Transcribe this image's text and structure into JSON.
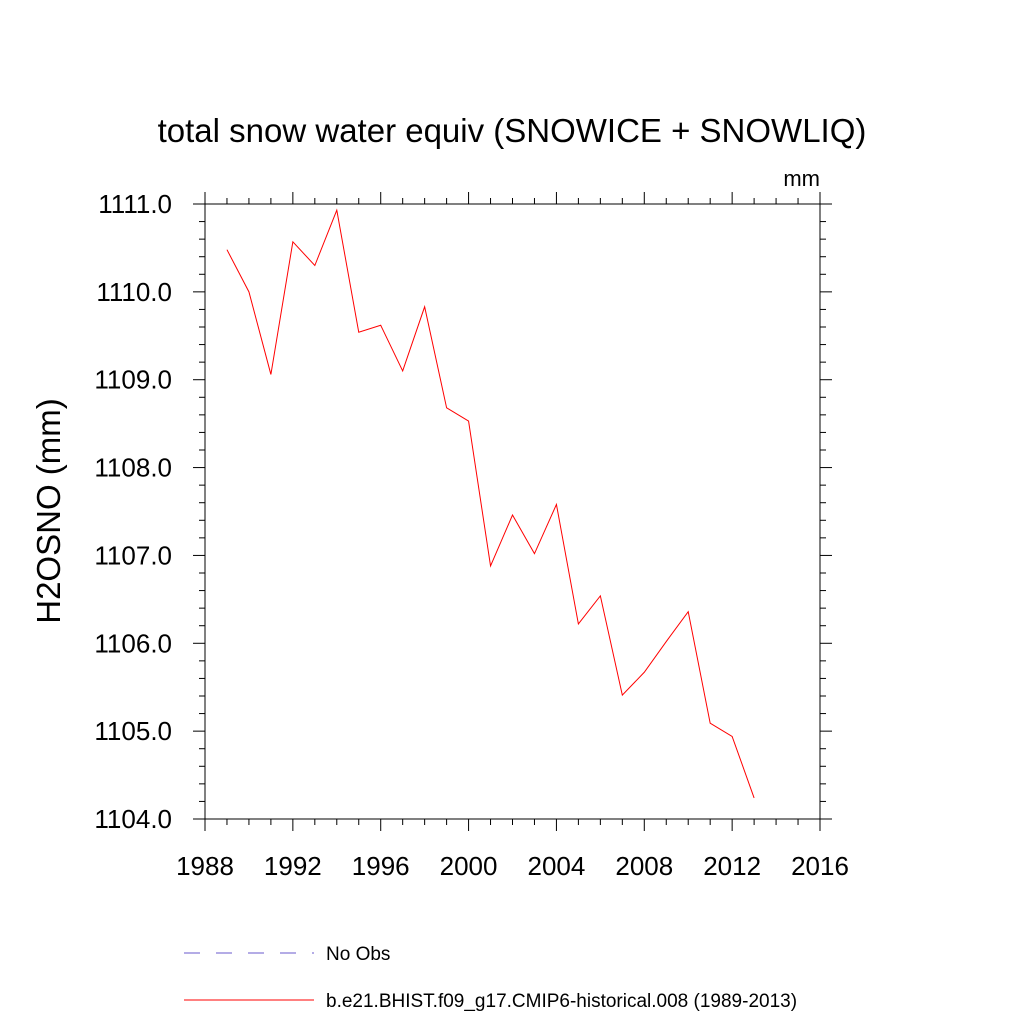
{
  "chart_data": {
    "type": "line",
    "title": "total snow water equiv (SNOWICE + SNOWLIQ)",
    "units_label": "mm",
    "xlabel": "",
    "ylabel": "H2OSNO  (mm)",
    "xlim": [
      1988,
      2016
    ],
    "ylim": [
      1104.0,
      1111.0
    ],
    "x_ticks": [
      1988,
      1992,
      1996,
      2000,
      2004,
      2008,
      2012,
      2016
    ],
    "y_ticks": [
      "1104.0",
      "1105.0",
      "1106.0",
      "1107.0",
      "1108.0",
      "1109.0",
      "1110.0",
      "1111.0"
    ],
    "grid": false,
    "legend_position": "bottom",
    "series": [
      {
        "name": "b.e21.BHIST.f09_g17.CMIP6-historical.008 (1989-2013)",
        "color": "#ff0000",
        "style": "solid",
        "x": [
          1989,
          1990,
          1991,
          1992,
          1993,
          1994,
          1995,
          1996,
          1997,
          1998,
          1999,
          2000,
          2001,
          2002,
          2003,
          2004,
          2005,
          2006,
          2007,
          2008,
          2009,
          2010,
          2011,
          2012,
          2013
        ],
        "y": [
          1110.48,
          1110.0,
          1109.06,
          1110.57,
          1110.3,
          1110.93,
          1109.54,
          1109.62,
          1109.1,
          1109.83,
          1108.68,
          1108.53,
          1106.88,
          1107.46,
          1107.02,
          1107.58,
          1106.22,
          1106.54,
          1105.41,
          1105.67,
          1106.02,
          1106.36,
          1105.09,
          1104.94,
          1104.24
        ]
      }
    ],
    "legend": [
      {
        "label": "No Obs",
        "color": "#6a5acd",
        "style": "dashed"
      },
      {
        "label": "b.e21.BHIST.f09_g17.CMIP6-historical.008 (1989-2013)",
        "color": "#ff0000",
        "style": "solid"
      }
    ]
  }
}
